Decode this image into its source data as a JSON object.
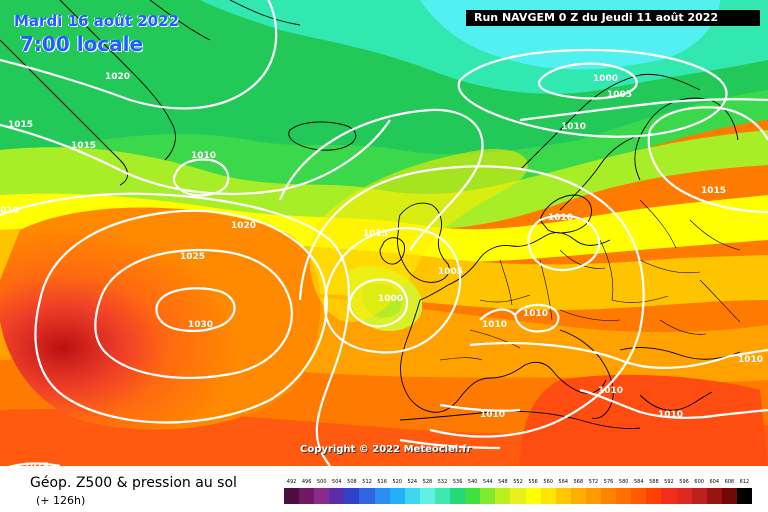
{
  "header": {
    "date": "Mardi 16 août 2022",
    "time": "7:00 locale",
    "run": "Run NAVGEM 0 Z du Jeudi 11 août 2022"
  },
  "map": {
    "isobar_labels": [
      "1020",
      "1015",
      "1015",
      "1010",
      "1010",
      "1000",
      "1005",
      "1010",
      "1015",
      "1010",
      "1020",
      "1025",
      "1030",
      "1015",
      "1005",
      "1000",
      "1010",
      "1010",
      "1010",
      "1010",
      "1010",
      "1015"
    ],
    "highs": [
      {
        "label": "1030"
      }
    ],
    "lows": [
      {
        "label": "1000"
      },
      {
        "label": "1000"
      }
    ]
  },
  "copyright": "Copyright © 2022 Meteociel.fr",
  "footer": {
    "caption": "Géop. Z500 & pression au sol",
    "subcaption": "(+ 126h)"
  },
  "legend": {
    "ticks": [
      "492",
      "496",
      "500",
      "504",
      "508",
      "512",
      "516",
      "520",
      "524",
      "528",
      "532",
      "536",
      "540",
      "544",
      "548",
      "552",
      "556",
      "560",
      "564",
      "568",
      "572",
      "576",
      "580",
      "584",
      "588",
      "592",
      "596",
      "600",
      "604",
      "608",
      "612"
    ],
    "colors": [
      "#4b0f3c",
      "#6e1a63",
      "#8a2b8c",
      "#5c2ca8",
      "#3040c8",
      "#2f66e0",
      "#2a8ef0",
      "#23b0f5",
      "#3fd4f0",
      "#62f0e6",
      "#40e8b0",
      "#28d878",
      "#40e040",
      "#80ea30",
      "#b8f020",
      "#e8f020",
      "#ffff00",
      "#ffe400",
      "#ffc800",
      "#ffae00",
      "#ff9a00",
      "#ff8500",
      "#ff7000",
      "#ff5a00",
      "#ff4000",
      "#f02e1a",
      "#dc2a20",
      "#c0201c",
      "#981410",
      "#700808",
      "#000000"
    ]
  },
  "colors": {
    "title_blue": "#1f5fff",
    "isobar": "#ffffff",
    "coastline": "#000000"
  }
}
